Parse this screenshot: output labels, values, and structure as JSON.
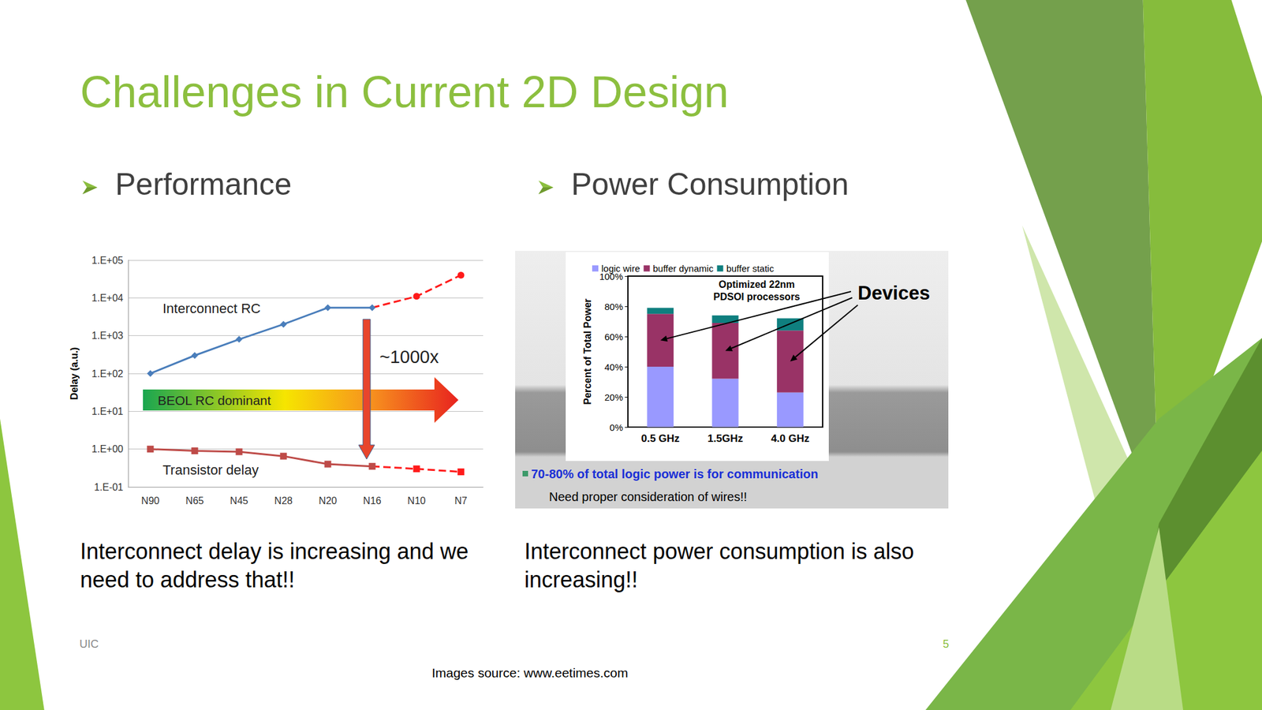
{
  "slide": {
    "title": "Challenges in Current 2D Design",
    "sections": [
      {
        "heading": "Performance",
        "caption": "Interconnect delay is increasing and we need to address that!!"
      },
      {
        "heading": "Power Consumption",
        "caption": "Interconnect power consumption is also increasing!!"
      }
    ],
    "footer_left": "UIC",
    "page_number": 5,
    "source": "Images source: www.eetimes.com"
  },
  "chart_data": [
    {
      "type": "line",
      "y_label": "Delay (a.u.)",
      "categories": [
        "N90",
        "N65",
        "N45",
        "N28",
        "N20",
        "N16",
        "N10",
        "N7"
      ],
      "log": "y",
      "ylim": [
        0.1,
        100000
      ],
      "yticks": [
        {
          "value": 0.1,
          "label": "1.E-01"
        },
        {
          "value": 1,
          "label": "1.E+00"
        },
        {
          "value": 10,
          "label": "1.E+01"
        },
        {
          "value": 100,
          "label": "1.E+02"
        },
        {
          "value": 1000,
          "label": "1.E+03"
        },
        {
          "value": 10000,
          "label": "1.E+04"
        },
        {
          "value": 100000,
          "label": "1.E+05"
        }
      ],
      "grid": true,
      "annotations": [
        "Interconnect RC",
        "Transistor delay",
        "~1000x",
        "BEOL RC dominant"
      ],
      "series": [
        {
          "name": "Interconnect RC",
          "color": "#4a7ebb",
          "marker": "diamond",
          "line_style": "solid",
          "values": [
            100,
            300,
            800,
            2000,
            5500,
            5500,
            null,
            null
          ]
        },
        {
          "name": "Interconnect RC",
          "color": "#ff1a1a",
          "marker": "circle",
          "line_style": "dashed",
          "values": [
            null,
            null,
            null,
            null,
            null,
            5500,
            11000,
            40000
          ]
        },
        {
          "name": "Transistor delay",
          "color": "#be4b48",
          "marker": "square",
          "line_style": "solid",
          "values": [
            1.0,
            0.9,
            0.85,
            0.65,
            0.4,
            0.35,
            null,
            null
          ]
        },
        {
          "name": "Transistor delay",
          "color": "#ff1a1a",
          "marker": "square",
          "line_style": "dashed",
          "values": [
            null,
            null,
            null,
            null,
            null,
            0.35,
            0.3,
            0.25
          ]
        }
      ]
    },
    {
      "type": "bar",
      "stacked": true,
      "legend": "top",
      "grid": false,
      "y_label": "Percent of Total Power",
      "categories": [
        "0.5 GHz",
        "1.5GHz",
        "4.0 GHz"
      ],
      "ylim": [
        0,
        100
      ],
      "yticks": [
        {
          "value": 0,
          "label": "0%"
        },
        {
          "value": 20,
          "label": "20%"
        },
        {
          "value": 40,
          "label": "40%"
        },
        {
          "value": 60,
          "label": "60%"
        },
        {
          "value": 80,
          "label": "80%"
        },
        {
          "value": 100,
          "label": "100%"
        }
      ],
      "inset_title": "Optimized 22nm PDSOI processors",
      "annotation": "Devices",
      "notes": [
        "70-80% of total logic power is for communication",
        "Need proper consideration of wires!!"
      ],
      "series": [
        {
          "name": "logic wire",
          "color": "#9999ff",
          "values": [
            40,
            32,
            23
          ]
        },
        {
          "name": "buffer dynamic",
          "color": "#993366",
          "values": [
            35,
            37,
            41
          ]
        },
        {
          "name": "buffer static",
          "color": "#0f7f7f",
          "values": [
            4,
            5,
            8
          ]
        }
      ]
    }
  ]
}
